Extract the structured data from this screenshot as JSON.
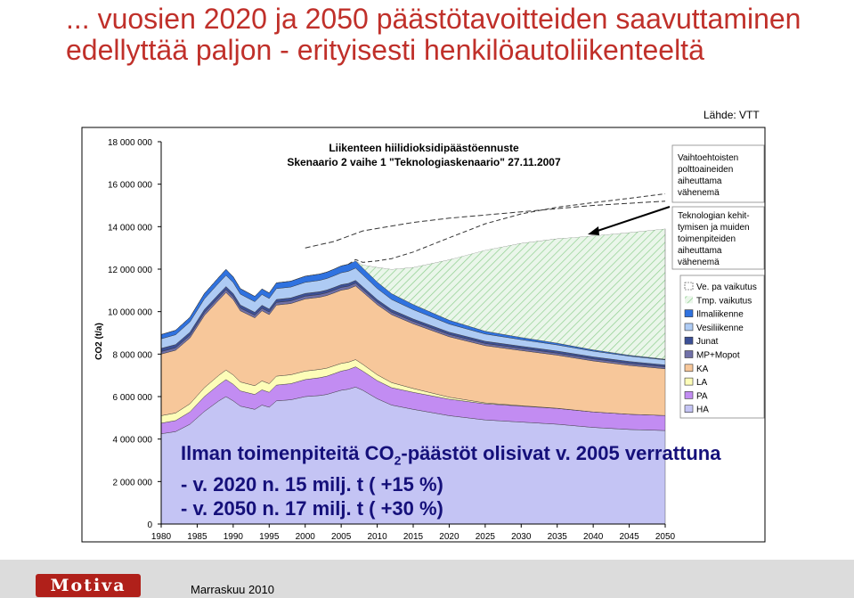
{
  "slide": {
    "title": "... vuosien 2020 ja 2050 päästötavoitteiden saavuttaminen edellyttää paljon - erityisesti henkilöautoliikenteeltä",
    "source": "Lähde: VTT",
    "footer_logo": "Motiva",
    "footer_date": "Marraskuu 2010"
  },
  "overlay": {
    "line1_pre": "Ilman toimenpiteitä CO",
    "line1_sub": "2",
    "line1_post": "-päästöt olisivat v. 2005 verrattuna",
    "line2": "- v. 2020 n. 15 milj. t ( +15 %)",
    "line3": "- v. 2050 n. 17 milj. t ( +30 %)"
  },
  "annotations": {
    "vaihto": [
      "Vaihtoehtoisten",
      "polttoaineiden",
      "aiheuttama",
      "vähenemä"
    ],
    "tekno": [
      "Teknologian kehit-",
      "tymisen ja muiden",
      "toimenpiteiden",
      "aiheuttama",
      "vähenemä"
    ]
  },
  "chart_data": {
    "type": "area",
    "stacked": true,
    "title": [
      "Liikenteen hiilidioksidipäästöennuste",
      "Skenaario 2 vaihe 1 \"Teknologiaskenaario\" 27.11.2007"
    ],
    "ylabel": "CO2 (t/a)",
    "xlabel": "",
    "xlim": [
      1980,
      2050
    ],
    "ylim": [
      0,
      18000000
    ],
    "x_ticks": [
      1980,
      1985,
      1990,
      1995,
      2000,
      2005,
      2010,
      2015,
      2020,
      2025,
      2030,
      2035,
      2040,
      2045,
      2050
    ],
    "y_ticks": [
      0,
      2000000,
      4000000,
      6000000,
      8000000,
      10000000,
      12000000,
      14000000,
      16000000,
      18000000
    ],
    "y_tick_labels": [
      "0",
      "2 000 000",
      "4 000 000",
      "6 000 000",
      "8 000 000",
      "10 000 000",
      "12 000 000",
      "14 000 000",
      "16 000 000",
      "18 000 000"
    ],
    "legend_position": "right",
    "x": [
      1980,
      1982,
      1984,
      1986,
      1988,
      1989,
      1990,
      1991,
      1993,
      1994,
      1995,
      1996,
      1998,
      2000,
      2002,
      2003,
      2004,
      2005,
      2006,
      2007,
      2008,
      2010,
      2012,
      2015,
      2020,
      2025,
      2030,
      2035,
      2040,
      2045,
      2050
    ],
    "series": [
      {
        "name": "HA",
        "color": "#c4c4f4",
        "values": [
          4250000,
          4350000,
          4700000,
          5300000,
          5800000,
          6000000,
          5800000,
          5550000,
          5400000,
          5600000,
          5500000,
          5800000,
          5850000,
          6000000,
          6050000,
          6100000,
          6200000,
          6300000,
          6350000,
          6450000,
          6300000,
          5900000,
          5600000,
          5400000,
          5100000,
          4900000,
          4800000,
          4700000,
          4550000,
          4450000,
          4400000
        ]
      },
      {
        "name": "PA",
        "color": "#c28cf2",
        "values": [
          500000,
          520000,
          580000,
          700000,
          760000,
          800000,
          780000,
          720000,
          700000,
          720000,
          700000,
          740000,
          760000,
          800000,
          840000,
          860000,
          880000,
          900000,
          920000,
          950000,
          900000,
          850000,
          820000,
          800000,
          780000,
          760000,
          750000,
          740000,
          730000,
          720000,
          710000
        ]
      },
      {
        "name": "LA",
        "color": "#fdfdb8",
        "values": [
          350000,
          360000,
          380000,
          420000,
          440000,
          450000,
          440000,
          420000,
          410000,
          420000,
          410000,
          420000,
          420000,
          400000,
          390000,
          380000,
          370000,
          360000,
          350000,
          340000,
          320000,
          280000,
          240000,
          180000,
          90000,
          40000,
          20000,
          10000,
          0,
          0,
          0
        ]
      },
      {
        "name": "KA",
        "color": "#f7c79a",
        "values": [
          2900000,
          2950000,
          3100000,
          3400000,
          3550000,
          3650000,
          3550000,
          3350000,
          3200000,
          3300000,
          3250000,
          3350000,
          3350000,
          3400000,
          3400000,
          3420000,
          3430000,
          3450000,
          3450000,
          3470000,
          3400000,
          3300000,
          3200000,
          3050000,
          2850000,
          2700000,
          2600000,
          2500000,
          2400000,
          2300000,
          2200000
        ]
      },
      {
        "name": "MP+Mopot",
        "color": "#7070a8",
        "values": [
          120000,
          120000,
          125000,
          130000,
          130000,
          130000,
          130000,
          125000,
          120000,
          120000,
          120000,
          125000,
          125000,
          130000,
          130000,
          130000,
          130000,
          130000,
          130000,
          130000,
          125000,
          120000,
          115000,
          110000,
          105000,
          100000,
          100000,
          95000,
          95000,
          90000,
          90000
        ]
      },
      {
        "name": "Junat",
        "color": "#3c5096",
        "values": [
          150000,
          150000,
          150000,
          150000,
          150000,
          150000,
          150000,
          150000,
          140000,
          140000,
          140000,
          140000,
          140000,
          130000,
          130000,
          130000,
          130000,
          130000,
          130000,
          130000,
          125000,
          120000,
          120000,
          115000,
          110000,
          105000,
          100000,
          100000,
          95000,
          95000,
          90000
        ]
      },
      {
        "name": "Vesiliikenne",
        "color": "#aecbf4",
        "values": [
          450000,
          460000,
          480000,
          500000,
          520000,
          530000,
          520000,
          510000,
          500000,
          510000,
          500000,
          510000,
          510000,
          520000,
          530000,
          540000,
          550000,
          560000,
          570000,
          580000,
          560000,
          520000,
          480000,
          440000,
          380000,
          340000,
          310000,
          290000,
          270000,
          250000,
          240000
        ]
      },
      {
        "name": "Ilmaliikenne",
        "color": "#2f72e0",
        "values": [
          200000,
          210000,
          220000,
          250000,
          270000,
          280000,
          270000,
          260000,
          250000,
          260000,
          260000,
          270000,
          280000,
          290000,
          300000,
          300000,
          310000,
          320000,
          330000,
          340000,
          320000,
          300000,
          270000,
          240000,
          180000,
          130000,
          100000,
          80000,
          60000,
          40000,
          30000
        ]
      },
      {
        "name": "Tmp. vaikutus",
        "color": "#d6efd6",
        "hatched": true,
        "values": [
          0,
          0,
          0,
          0,
          0,
          0,
          0,
          0,
          0,
          0,
          0,
          0,
          0,
          0,
          0,
          0,
          0,
          0,
          0,
          0,
          150000,
          700000,
          1150000,
          1750000,
          2850000,
          3820000,
          4440000,
          4920000,
          5370000,
          5780000,
          6140000
        ]
      },
      {
        "name": "Ve. pa vaikutus",
        "color": "#ffffff",
        "dashed_top": true,
        "values": [
          0,
          0,
          0,
          0,
          0,
          0,
          0,
          0,
          0,
          0,
          0,
          0,
          0,
          0,
          0,
          0,
          0,
          0,
          0,
          60000,
          120000,
          300000,
          500000,
          720000,
          1030000,
          1240000,
          1380000,
          1480000,
          1560000,
          1610000,
          1650000
        ]
      }
    ],
    "ref_line_x": [
      2000,
      2004,
      2008,
      2015,
      2020,
      2030,
      2040,
      2050
    ],
    "ref_line_y": [
      13000000,
      13300000,
      13800000,
      14200000,
      14400000,
      14700000,
      15000000,
      15200000
    ],
    "legend_order": [
      "Ve. pa vaikutus",
      "Tmp. vaikutus",
      "Ilmaliikenne",
      "Vesiliikenne",
      "Junat",
      "MP+Mopot",
      "KA",
      "LA",
      "PA",
      "HA"
    ]
  }
}
